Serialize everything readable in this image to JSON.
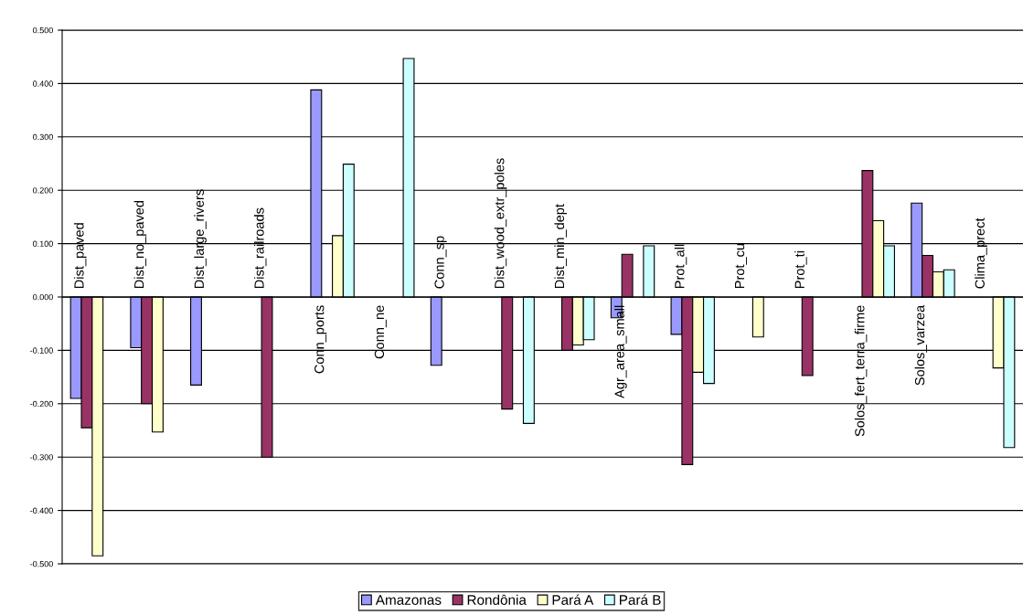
{
  "chart_data": {
    "type": "bar",
    "categories": [
      "Dist_paved",
      "Dist_no_paved",
      "Dist_large_rivers",
      "Dist_railroads",
      "Conn_ports",
      "Conn_ne",
      "Conn_sp",
      "Dist_wood_extr_poles",
      "Dist_min_dept",
      "Agr_area_small",
      "Prot_all",
      "Prot_cu",
      "Prot_ti",
      "Solos_fert_terra_firme",
      "Solos_varzea",
      "Clima_prect"
    ],
    "series": [
      {
        "name": "Amazonas",
        "color": "#9999ff",
        "values": [
          -0.19,
          -0.095,
          -0.165,
          null,
          0.388,
          null,
          -0.128,
          null,
          null,
          -0.039,
          -0.07,
          null,
          null,
          null,
          0.176,
          null
        ]
      },
      {
        "name": "Rondônia",
        "color": "#993366",
        "values": [
          -0.245,
          -0.2,
          null,
          -0.3,
          null,
          null,
          null,
          -0.21,
          -0.1,
          0.08,
          -0.314,
          null,
          -0.147,
          0.237,
          0.078,
          null
        ]
      },
      {
        "name": "Pará A",
        "color": "#ffffcc",
        "values": [
          -0.485,
          -0.253,
          null,
          null,
          0.115,
          null,
          null,
          null,
          -0.09,
          null,
          -0.141,
          -0.075,
          null,
          0.143,
          0.047,
          -0.133
        ]
      },
      {
        "name": "Pará B",
        "color": "#ccffff",
        "values": [
          null,
          null,
          null,
          null,
          0.249,
          0.447,
          null,
          -0.237,
          -0.08,
          0.096,
          -0.162,
          null,
          null,
          0.096,
          0.051,
          -0.282
        ]
      }
    ],
    "ylim": [
      -0.5,
      0.5
    ],
    "yticks": [
      {
        "value": -0.5,
        "label": "-0.500"
      },
      {
        "value": -0.4,
        "label": "-0.400"
      },
      {
        "value": -0.3,
        "label": "-0.300"
      },
      {
        "value": -0.2,
        "label": "-0.200"
      },
      {
        "value": -0.1,
        "label": "-0.100"
      },
      {
        "value": 0,
        "label": "0.000"
      },
      {
        "value": 0.1,
        "label": "0.100"
      },
      {
        "value": 0.2,
        "label": "0.200"
      },
      {
        "value": 0.3,
        "label": "0.300"
      },
      {
        "value": 0.4,
        "label": "0.400"
      },
      {
        "value": 0.5,
        "label": "0.500"
      }
    ],
    "grid": "y",
    "legend": "bottom"
  }
}
